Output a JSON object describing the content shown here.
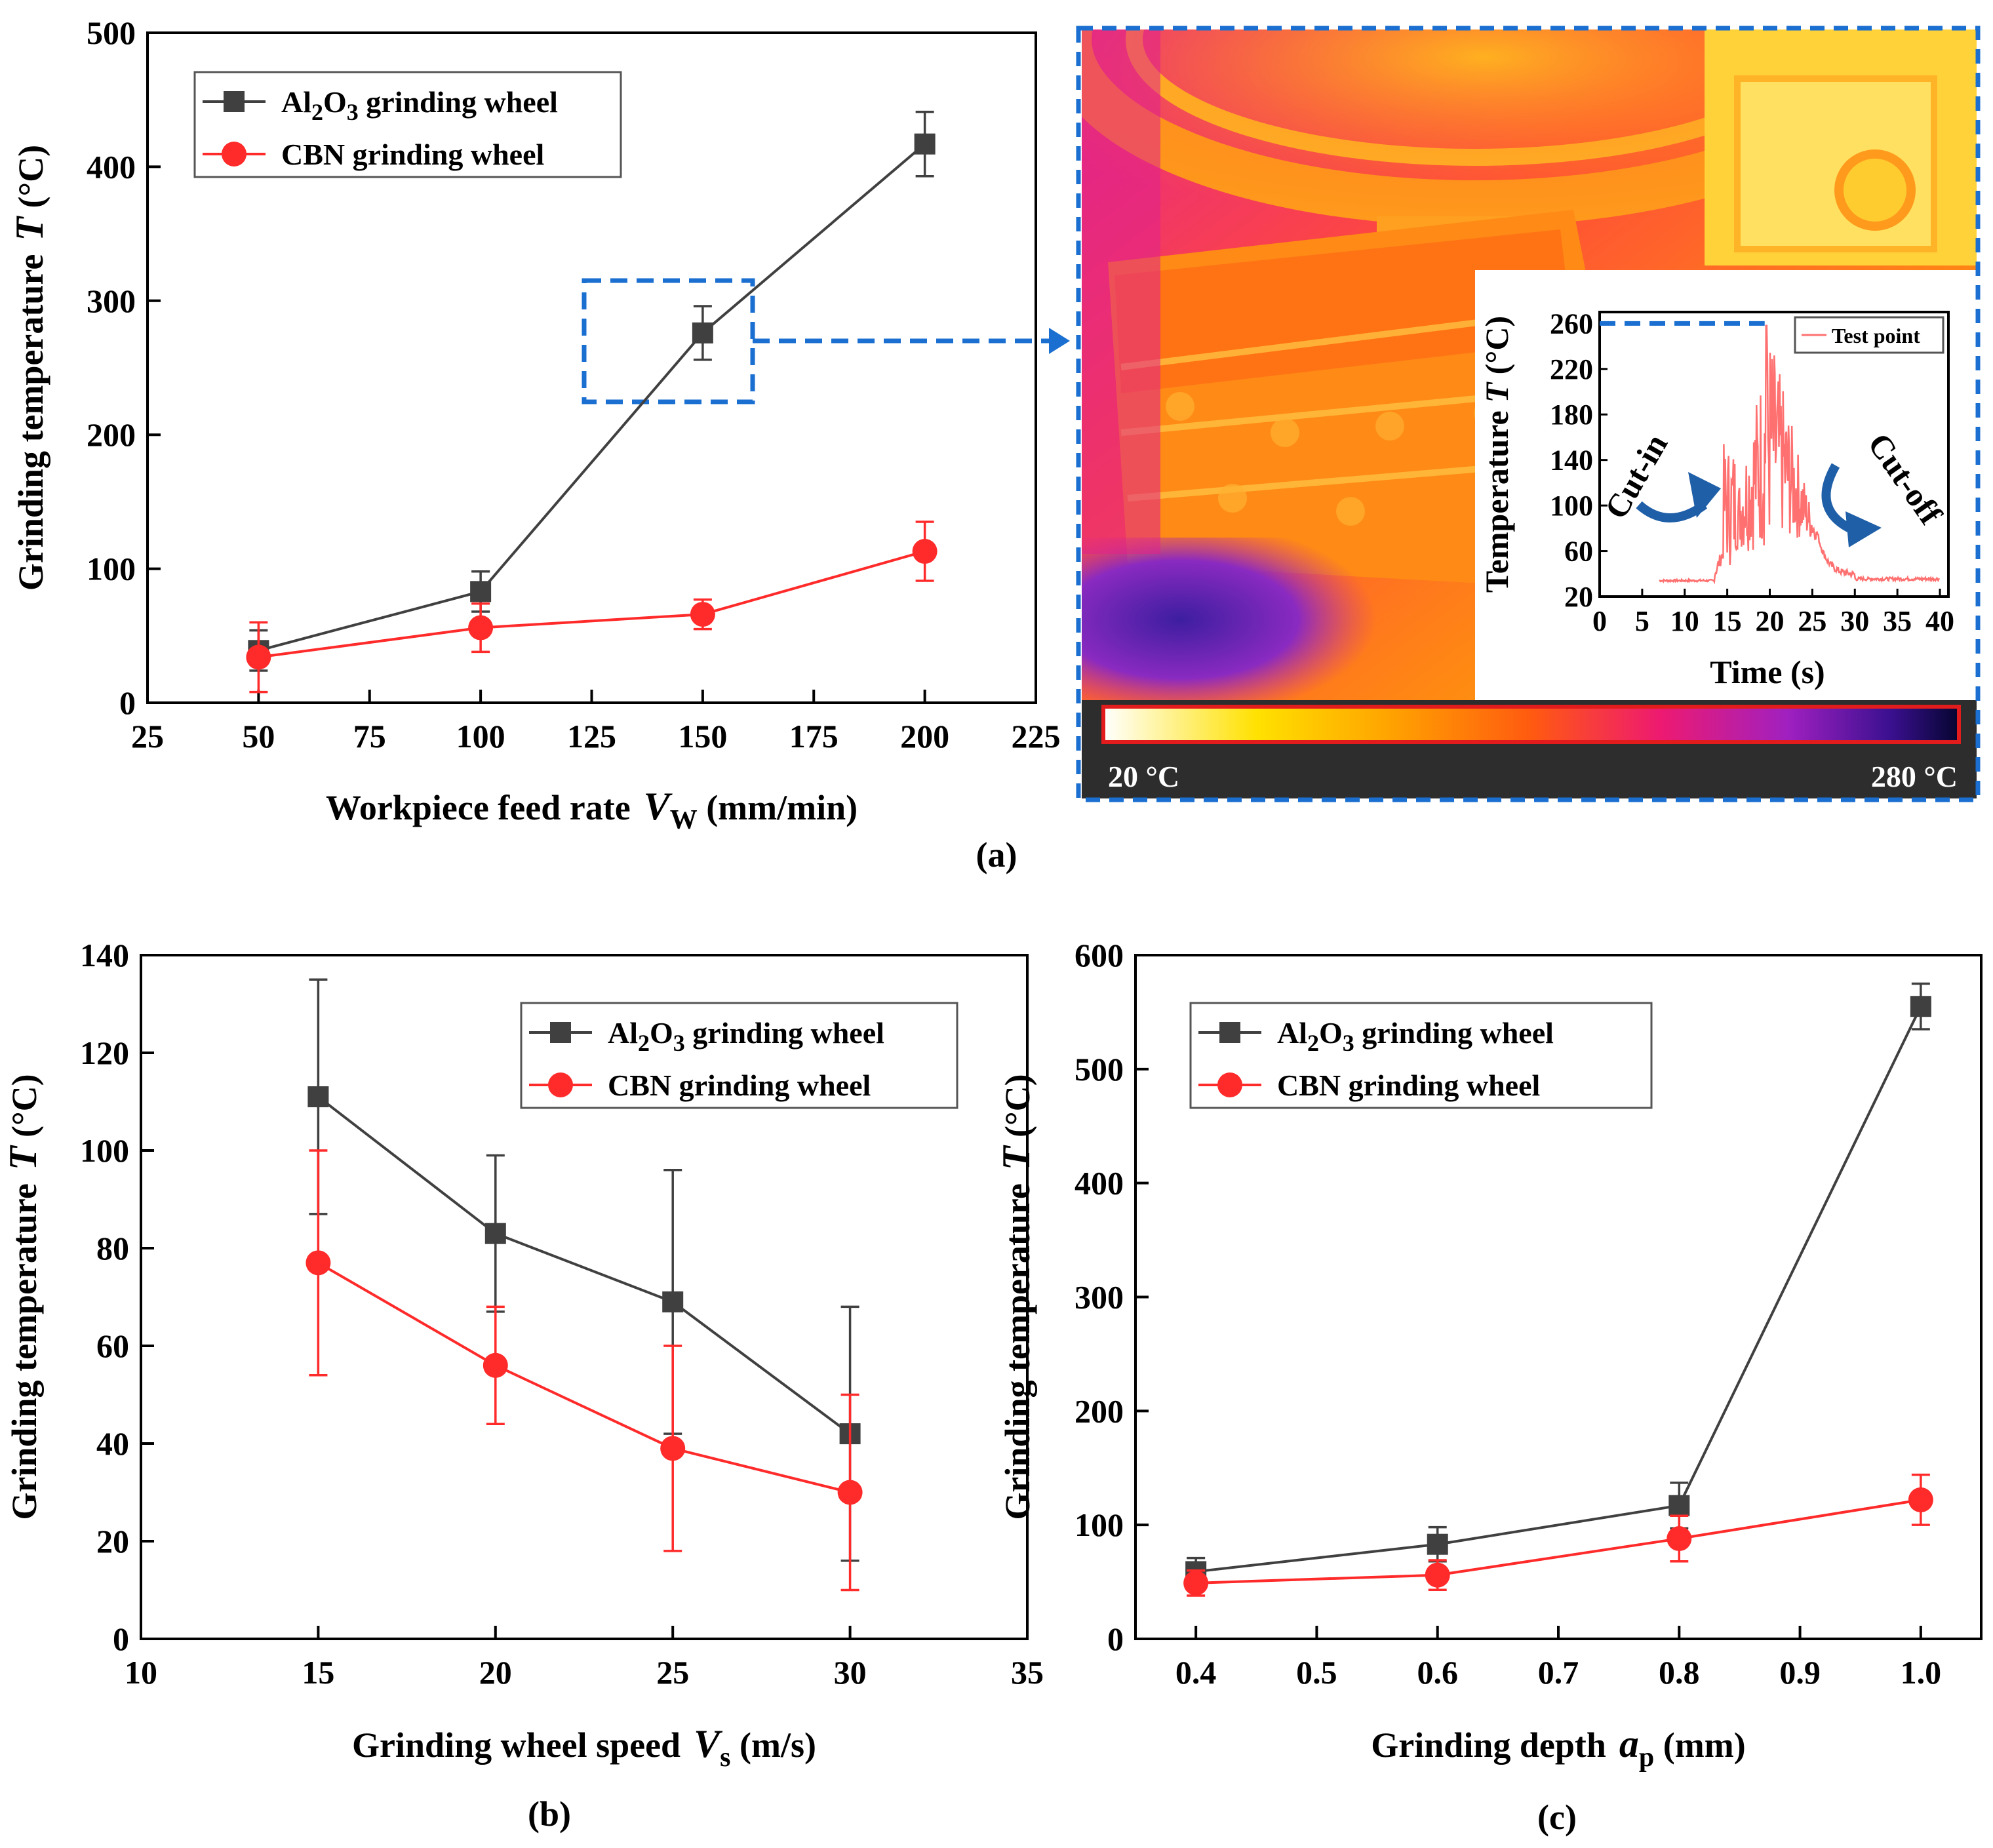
{
  "colors": {
    "al2o3": "#404040",
    "cbn": "#ff2a2a",
    "callout": "#1a6fd0",
    "cutarrow": "#1f5fa8"
  },
  "chart_data": [
    {
      "id": "a",
      "type": "line",
      "panel_label": "(a)",
      "xlabel": {
        "main": "Workpiece feed rate",
        "var": "V",
        "sub": "W",
        "unit": " (mm/min)"
      },
      "ylabel": {
        "main": "Grinding temperature",
        "var": "T",
        "unit": " (°C)"
      },
      "xlim": [
        25,
        225
      ],
      "ylim": [
        0,
        500
      ],
      "xticks": [
        25,
        50,
        75,
        100,
        125,
        150,
        175,
        200,
        225
      ],
      "yticks": [
        0,
        100,
        200,
        300,
        400,
        500
      ],
      "xtick_labels": [
        "25",
        "50",
        "75",
        "100",
        "125",
        "150",
        "175",
        "200",
        "225"
      ],
      "ytick_labels": [
        "0",
        "100",
        "200",
        "300",
        "400",
        "500"
      ],
      "legend": "top-left",
      "x": [
        50,
        100,
        150,
        200
      ],
      "series": [
        {
          "name_parts": [
            "Al",
            "2",
            "O",
            "3",
            " grinding wheel"
          ],
          "marker": "square",
          "values": [
            39,
            83,
            276,
            417
          ],
          "err": [
            15,
            15,
            20,
            24
          ]
        },
        {
          "name_parts": [
            "CBN grinding wheel"
          ],
          "marker": "circle",
          "values": [
            34,
            56,
            66,
            113
          ],
          "err": [
            26,
            18,
            11,
            22
          ]
        }
      ]
    },
    {
      "id": "b",
      "type": "line",
      "panel_label": "(b)",
      "xlabel": {
        "main": "Grinding wheel speed",
        "var": "V",
        "sub": "s",
        "unit": " (m/s)"
      },
      "ylabel": {
        "main": "Grinding temperature",
        "var": "T",
        "unit": " (°C)"
      },
      "xlim": [
        10,
        35
      ],
      "ylim": [
        0,
        140
      ],
      "xticks": [
        10,
        15,
        20,
        25,
        30,
        35
      ],
      "yticks": [
        0,
        20,
        40,
        60,
        80,
        100,
        120,
        140
      ],
      "xtick_labels": [
        "10",
        "15",
        "20",
        "25",
        "30",
        "35"
      ],
      "ytick_labels": [
        "0",
        "20",
        "40",
        "60",
        "80",
        "100",
        "120",
        "140"
      ],
      "legend": "top-right",
      "x": [
        15,
        20,
        25,
        30
      ],
      "series": [
        {
          "name_parts": [
            "Al",
            "2",
            "O",
            "3",
            " grinding wheel"
          ],
          "marker": "square",
          "values": [
            111,
            83,
            69,
            42
          ],
          "err": [
            24,
            16,
            27,
            26
          ]
        },
        {
          "name_parts": [
            "CBN grinding wheel"
          ],
          "marker": "circle",
          "values": [
            77,
            56,
            39,
            30
          ],
          "err": [
            23,
            12,
            21,
            20
          ]
        }
      ]
    },
    {
      "id": "c",
      "type": "line",
      "panel_label": "(c)",
      "xlabel": {
        "main": "Grinding depth",
        "var": "a",
        "sub": "p",
        "unit": " (mm)"
      },
      "ylabel": {
        "main": "Grinding temperature",
        "var": "T",
        "unit": " (°C)"
      },
      "xlim": [
        0.35,
        1.05
      ],
      "ylim": [
        0,
        600
      ],
      "xticks": [
        0.4,
        0.5,
        0.6,
        0.7,
        0.8,
        0.9,
        1.0
      ],
      "yticks": [
        0,
        100,
        200,
        300,
        400,
        500,
        600
      ],
      "xtick_labels": [
        "0.4",
        "0.5",
        "0.6",
        "0.7",
        "0.8",
        "0.9",
        "1.0"
      ],
      "ytick_labels": [
        "0",
        "100",
        "200",
        "300",
        "400",
        "500",
        "600"
      ],
      "legend": "top-left",
      "x": [
        0.4,
        0.6,
        0.8,
        1.0
      ],
      "series": [
        {
          "name_parts": [
            "Al",
            "2",
            "O",
            "3",
            " grinding wheel"
          ],
          "marker": "square",
          "values": [
            59,
            83,
            117,
            555
          ],
          "err": [
            12,
            15,
            20,
            20
          ]
        },
        {
          "name_parts": [
            "CBN grinding wheel"
          ],
          "marker": "circle",
          "values": [
            49,
            56,
            88,
            122
          ],
          "err": [
            11,
            13,
            20,
            22
          ]
        }
      ]
    },
    {
      "id": "inset",
      "type": "line",
      "xlabel": "Time (s)",
      "ylabel": {
        "main": "Temperature",
        "var": "T",
        "unit": " (°C)"
      },
      "xlim": [
        0,
        41
      ],
      "ylim": [
        20,
        270
      ],
      "xticks": [
        0,
        5,
        10,
        15,
        20,
        25,
        30,
        35,
        40
      ],
      "yticks": [
        20,
        60,
        100,
        140,
        180,
        220,
        260
      ],
      "xtick_labels": [
        "0",
        "5",
        "10",
        "15",
        "20",
        "25",
        "30",
        "35",
        "40"
      ],
      "ytick_labels": [
        "20",
        "60",
        "100",
        "140",
        "180",
        "220",
        "260"
      ],
      "legend": "top-right",
      "series": [
        {
          "name": "Test point"
        }
      ],
      "annotations": [
        "Cut-in",
        "Cut-off"
      ]
    }
  ],
  "thermal": {
    "colorbar_min": "20 °C",
    "colorbar_max": "280 °C"
  }
}
